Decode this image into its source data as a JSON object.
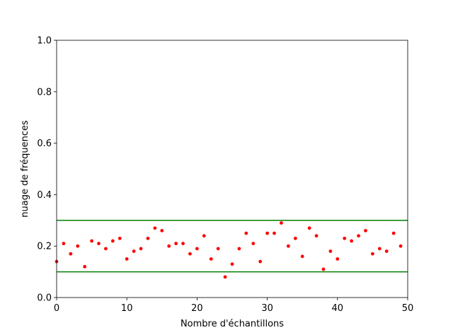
{
  "chart_data": {
    "type": "scatter",
    "xlabel": "Nombre d'échantillons",
    "ylabel": "nuage de fréquences",
    "x": [
      0,
      1,
      2,
      3,
      4,
      5,
      6,
      7,
      8,
      9,
      10,
      11,
      12,
      13,
      14,
      15,
      16,
      17,
      18,
      19,
      20,
      21,
      22,
      23,
      24,
      25,
      26,
      27,
      28,
      29,
      30,
      31,
      32,
      33,
      34,
      35,
      36,
      37,
      38,
      39,
      40,
      41,
      42,
      43,
      44,
      45,
      46,
      47,
      48,
      49
    ],
    "values": [
      0.14,
      0.21,
      0.17,
      0.2,
      0.12,
      0.22,
      0.21,
      0.19,
      0.22,
      0.23,
      0.15,
      0.18,
      0.19,
      0.23,
      0.27,
      0.26,
      0.2,
      0.21,
      0.21,
      0.17,
      0.19,
      0.24,
      0.15,
      0.19,
      0.08,
      0.13,
      0.19,
      0.25,
      0.21,
      0.14,
      0.25,
      0.25,
      0.29,
      0.2,
      0.23,
      0.16,
      0.27,
      0.24,
      0.11,
      0.18,
      0.15,
      0.23,
      0.22,
      0.24,
      0.26,
      0.17,
      0.19,
      0.18,
      0.25,
      0.2
    ],
    "color": "red",
    "hlines": [
      {
        "value": 0.1,
        "color": "green"
      },
      {
        "value": 0.3,
        "color": "green"
      }
    ],
    "xlim": [
      0,
      50
    ],
    "ylim": [
      0,
      1
    ],
    "xticks": [
      0,
      10,
      20,
      30,
      40,
      50
    ],
    "yticks": [
      {
        "value": 0,
        "label": "0.0"
      },
      {
        "value": 0.2,
        "label": "0.2"
      },
      {
        "value": 0.4,
        "label": "0.4"
      },
      {
        "value": 0.6,
        "label": "0.6"
      },
      {
        "value": 0.8,
        "label": "0.8"
      },
      {
        "value": 1,
        "label": "1.0"
      }
    ],
    "grid": false
  }
}
